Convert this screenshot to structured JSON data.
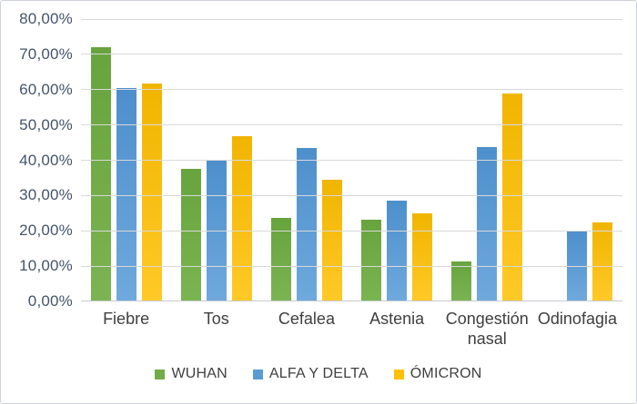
{
  "chart_data": {
    "type": "bar",
    "title": "",
    "xlabel": "",
    "ylabel": "",
    "categories": [
      "Fiebre",
      "Tos",
      "Cefalea",
      "Astenia",
      "Congestión nasal",
      "Odinofagia"
    ],
    "series": [
      {
        "name": "WUHAN",
        "color": "#70AD47",
        "gradient_top": "#67A43D",
        "gradient_bottom": "#7BB452",
        "values": [
          72.0,
          37.5,
          23.7,
          23.2,
          11.2,
          0
        ]
      },
      {
        "name": "ALFA Y DELTA",
        "color": "#5B9BD5",
        "gradient_top": "#4D8FCC",
        "gradient_bottom": "#6FA9DD",
        "values": [
          60.5,
          40.0,
          43.6,
          28.6,
          43.7,
          20.0
        ]
      },
      {
        "name": "ÓMICRON",
        "color": "#FFC000",
        "gradient_top": "#F0B500",
        "gradient_bottom": "#FFC927",
        "values": [
          61.8,
          46.8,
          34.5,
          25.0,
          59.0,
          22.5
        ]
      }
    ],
    "ylim": [
      0,
      80
    ],
    "ytick_step": 10,
    "ytick_labels": [
      "0,00%",
      "10,00%",
      "20,00%",
      "30,00%",
      "40,00%",
      "50,00%",
      "60,00%",
      "70,00%",
      "80,00%"
    ],
    "value_format": "percent-comma",
    "grid": true,
    "legend_position": "bottom"
  },
  "colors": {
    "background": "#FFFFFF",
    "border": "#CDD2D8",
    "gridline": "#D9D9D9",
    "axis_line": "#C6CAD0",
    "ytick_label": "#44546A",
    "category_label": "#3F3F3F",
    "legend_label": "#3F3F3F"
  }
}
